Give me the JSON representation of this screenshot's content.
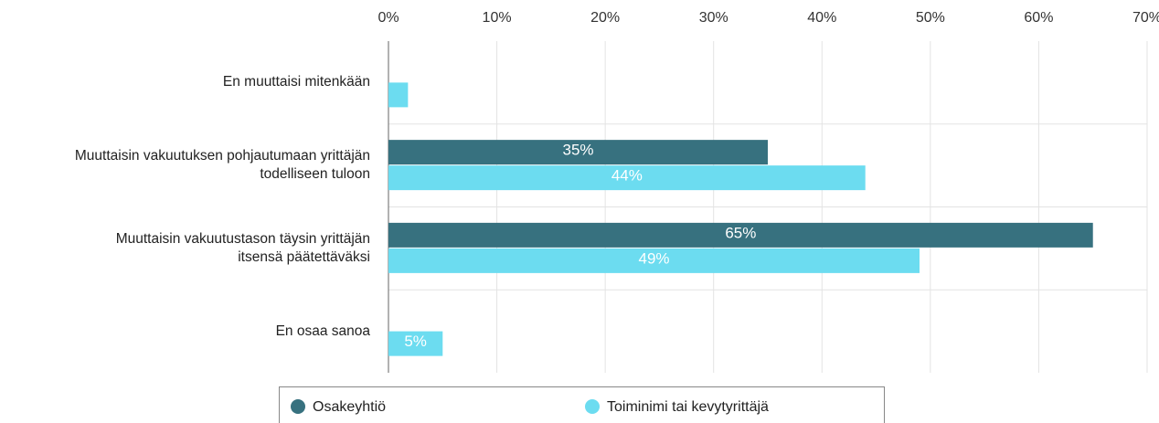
{
  "chart_data": {
    "type": "barh",
    "categories": [
      "En muuttaisi mitenkään",
      "Muuttaisin vakuutuksen pohjautumaan yrittäjän\ntodelliseen tuloon",
      "Muuttaisin vakuutustason täysin yrittäjän\nitsensä päätettäväksi",
      "En osaa sanoa"
    ],
    "series": [
      {
        "name": "Osakeyhtiö",
        "color": "#37717f",
        "values": [
          0,
          35,
          65,
          0
        ],
        "value_labels": [
          null,
          "35%",
          "65%",
          null
        ]
      },
      {
        "name": "Toiminimi tai kevytyrittäjä",
        "color": "#6cdcf0",
        "values": [
          1.8,
          44,
          49,
          5
        ],
        "value_labels": [
          null,
          "44%",
          "49%",
          "5%"
        ]
      }
    ],
    "xlim": [
      0,
      70
    ],
    "xticks": [
      {
        "value": 0,
        "label": "0%"
      },
      {
        "value": 10,
        "label": "10%"
      },
      {
        "value": 20,
        "label": "20%"
      },
      {
        "value": 30,
        "label": "30%"
      },
      {
        "value": 40,
        "label": "40%"
      },
      {
        "value": 50,
        "label": "50%"
      },
      {
        "value": 60,
        "label": "60%"
      },
      {
        "value": 70,
        "label": "70%"
      }
    ],
    "grid": true,
    "legend": "bottom"
  }
}
